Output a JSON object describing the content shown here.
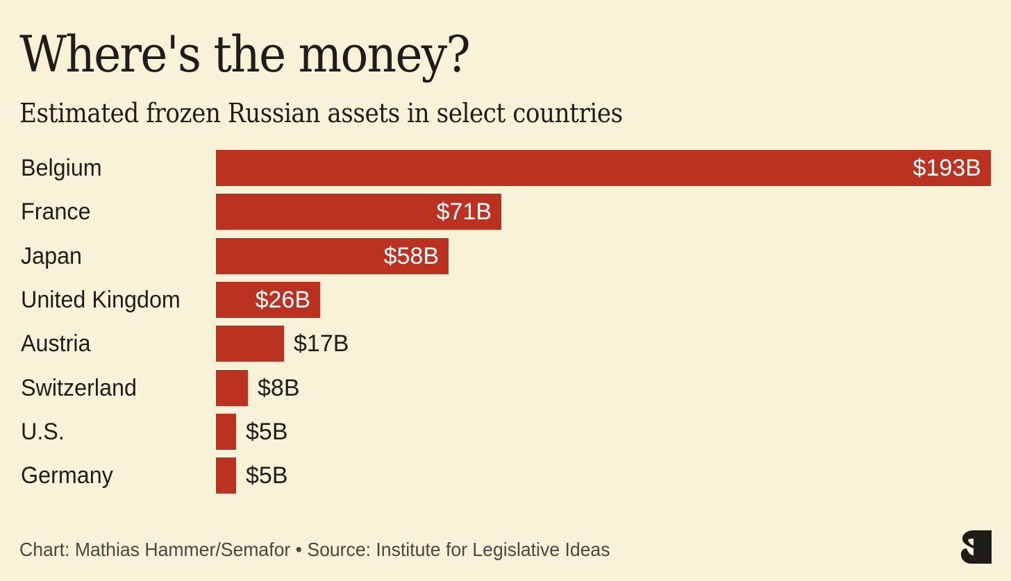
{
  "header": {
    "title": "Where's the money?",
    "subtitle": "Estimated frozen Russian assets in select countries"
  },
  "footer": {
    "credit": "Chart: Mathias Hammer/Semafor • Source: Institute for Legislative Ideas"
  },
  "logo": {
    "icon": "semafor-logo-icon"
  },
  "colors": {
    "background": "#F8F3D8",
    "bar": "#BC3220",
    "text": "#1F1D18",
    "footer_text": "#4A4740",
    "inside_label": "#FFFFFF"
  },
  "chart_data": {
    "type": "bar",
    "orientation": "horizontal",
    "title": "Where's the money?",
    "subtitle": "Estimated frozen Russian assets in select countries",
    "categories": [
      "Belgium",
      "France",
      "Japan",
      "United Kingdom",
      "Austria",
      "Switzerland",
      "U.S.",
      "Germany"
    ],
    "values": [
      193,
      71,
      58,
      26,
      17,
      8,
      5,
      5
    ],
    "value_labels": [
      "$193B",
      "$71B",
      "$58B",
      "$26B",
      "$17B",
      "$8B",
      "$5B",
      "$5B"
    ],
    "unit": "billion USD",
    "xlabel": "",
    "ylabel": "",
    "xlim": [
      0,
      193
    ],
    "grid": false,
    "legend": null,
    "source": "Institute for Legislative Ideas",
    "credit": "Mathias Hammer/Semafor"
  }
}
